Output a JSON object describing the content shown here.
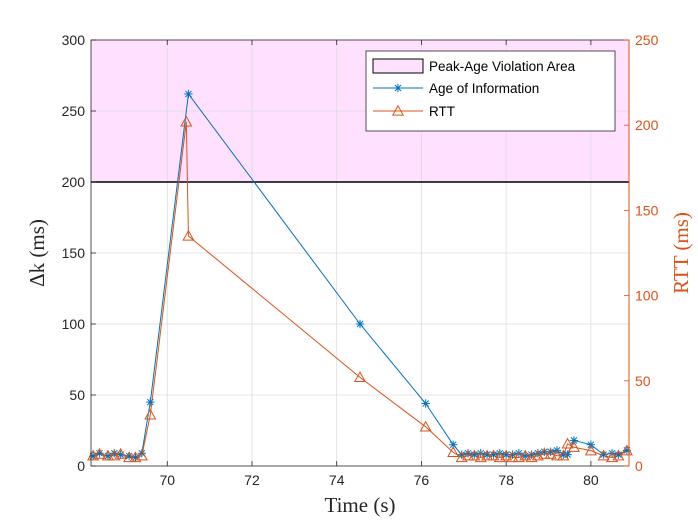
{
  "chart_data": {
    "type": "line",
    "xlabel": "Time (s)",
    "ylabel_left": "Δk (ms)",
    "ylabel_right": "RTT (ms)",
    "xlim": [
      68.2,
      80.9
    ],
    "ylim_left": [
      0,
      300
    ],
    "ylim_right": [
      0,
      250
    ],
    "xticks": [
      70,
      72,
      74,
      76,
      78,
      80
    ],
    "yticks_left": [
      0,
      50,
      100,
      150,
      200,
      250,
      300
    ],
    "yticks_right": [
      0,
      50,
      100,
      150,
      200,
      250
    ],
    "grid": true,
    "threshold": {
      "label": "Peak-Age Violation Area",
      "value": 200,
      "color": "#FFE0FF"
    },
    "legend_position": "top-right",
    "series": [
      {
        "name": "Age of Information",
        "axis": "left",
        "color": "#0072BD",
        "marker": "asterisk",
        "x": [
          68.25,
          68.4,
          68.6,
          68.75,
          68.9,
          69.1,
          69.25,
          69.4,
          69.6,
          70.5,
          74.55,
          76.1,
          76.75,
          76.95,
          77.1,
          77.25,
          77.4,
          77.55,
          77.7,
          77.85,
          78.0,
          78.15,
          78.3,
          78.45,
          78.6,
          78.75,
          78.9,
          79.05,
          79.2,
          79.35,
          79.45,
          79.6,
          80.0,
          80.3,
          80.5,
          80.65,
          80.85
        ],
        "y": [
          7,
          9,
          7,
          9,
          8,
          7,
          6,
          9,
          45,
          262,
          100,
          44,
          15,
          8,
          9,
          8,
          9,
          8,
          8,
          9,
          8,
          8,
          9,
          7,
          8,
          9,
          10,
          10,
          11,
          8,
          8,
          18,
          15,
          8,
          9,
          8,
          11
        ]
      },
      {
        "name": "RTT",
        "axis": "right",
        "color": "#D95319",
        "marker": "triangle",
        "x": [
          68.25,
          68.4,
          68.6,
          68.75,
          68.9,
          69.1,
          69.25,
          69.4,
          69.6,
          70.45,
          70.5,
          74.55,
          76.1,
          76.75,
          76.95,
          77.1,
          77.25,
          77.4,
          77.55,
          77.7,
          77.85,
          78.0,
          78.15,
          78.3,
          78.45,
          78.6,
          78.75,
          78.9,
          79.05,
          79.2,
          79.35,
          79.45,
          79.6,
          80.0,
          80.3,
          80.5,
          80.65,
          80.85
        ],
        "y": [
          6,
          7,
          6,
          6,
          7,
          5,
          5,
          6,
          30,
          202,
          135,
          52,
          23,
          8,
          5,
          6,
          6,
          5,
          6,
          6,
          5,
          6,
          5,
          5,
          6,
          5,
          6,
          7,
          7,
          6,
          6,
          13,
          11,
          9,
          6,
          5,
          6,
          9
        ]
      }
    ]
  }
}
